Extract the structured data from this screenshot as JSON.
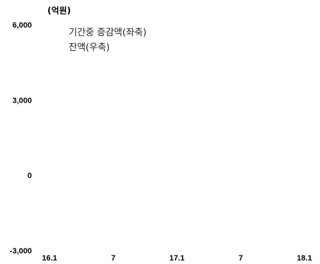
{
  "chart_data": {
    "type": "bar",
    "unit_label": "(억원)",
    "y_axis": {
      "ylim": [
        -3000,
        6000
      ],
      "ticks": [
        {
          "value": 6000,
          "label": "6,000"
        },
        {
          "value": 3000,
          "label": "3,000"
        },
        {
          "value": 0,
          "label": "0"
        },
        {
          "value": -3000,
          "label": "-3,000"
        }
      ]
    },
    "x_axis": {
      "tick_labels": [
        "16.1",
        "7",
        "17.1",
        "7",
        "18.1"
      ]
    },
    "legend": [
      {
        "name": "기간중 증감액(좌축)"
      },
      {
        "name": "잔액(우축)"
      }
    ],
    "series": [],
    "grid": false
  }
}
